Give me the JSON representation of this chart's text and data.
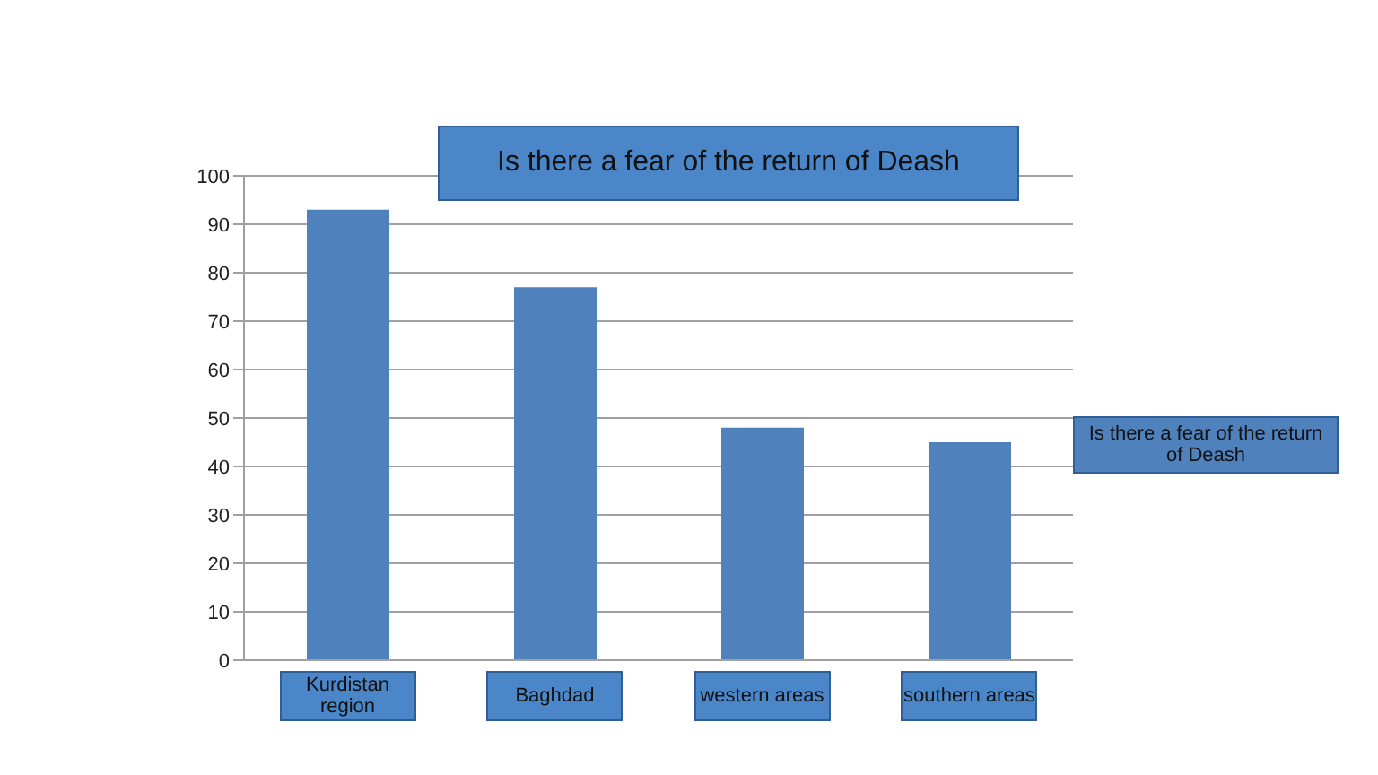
{
  "chart_data": {
    "type": "bar",
    "title": "Is there a fear of the return of Deash",
    "categories": [
      "Kurdistan region",
      "Baghdad",
      "western areas",
      "southern areas"
    ],
    "series": [
      {
        "name": "Is there a fear of the return of Deash",
        "color": "#4f81bd",
        "values": [
          93,
          77,
          48,
          45
        ]
      }
    ],
    "ylim": [
      0,
      100
    ],
    "yticks": [
      0,
      10,
      20,
      30,
      40,
      50,
      60,
      70,
      80,
      90,
      100
    ],
    "grid": "y",
    "legend": "right"
  }
}
